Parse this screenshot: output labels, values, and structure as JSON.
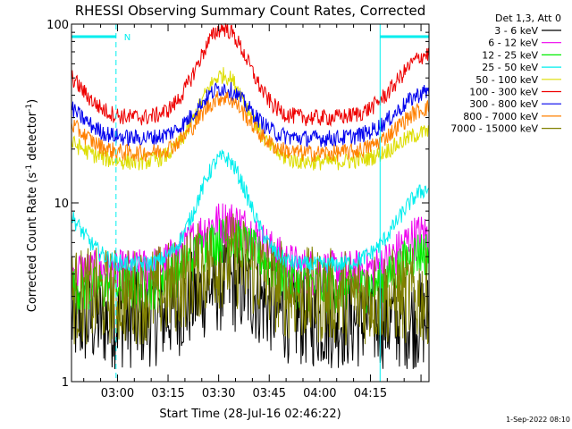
{
  "chart_data": {
    "type": "line",
    "title": "RHESSI Observing Summary Count Rates, Corrected",
    "xlabel": "Start Time (28-Jul-16 02:46:22)",
    "ylabel_main": "Corrected Count Rate (s",
    "ylabel_sup1": "-1",
    "ylabel_mid": " detector",
    "ylabel_sup2": "-1",
    "ylabel_end": ")",
    "y_scale": "log",
    "ylim": [
      1,
      100
    ],
    "y_ticks": [
      {
        "value": 1,
        "label": "1"
      },
      {
        "value": 10,
        "label": "10"
      },
      {
        "value": 100,
        "label": "100"
      }
    ],
    "xlim_minutes": [
      0,
      106
    ],
    "x_ticks": [
      {
        "minute": 13.63,
        "label": "03:00"
      },
      {
        "minute": 28.63,
        "label": "03:15"
      },
      {
        "minute": 43.63,
        "label": "03:30"
      },
      {
        "minute": 58.63,
        "label": "03:45"
      },
      {
        "minute": 73.63,
        "label": "04:00"
      },
      {
        "minute": 88.63,
        "label": "04:15"
      }
    ],
    "legend_header": "Det 1,3, Att 0",
    "legend_position": "top-right, outside plot",
    "series": [
      {
        "name": "3 - 6 keV",
        "color": "#000000",
        "kind": "low-noisy",
        "level": 2.2
      },
      {
        "name": "6 - 12 keV",
        "color": "#ee00ee",
        "kind": "low-band",
        "level": 4.2
      },
      {
        "name": "12 - 25 keV",
        "color": "#00ee00",
        "kind": "low-band",
        "level": 3.4
      },
      {
        "name": "25 - 50 keV",
        "color": "#00eeee",
        "kind": "smooth",
        "base": 4.5,
        "peak": 18,
        "edge": 12
      },
      {
        "name": "50 - 100 keV",
        "color": "#dddd00",
        "kind": "smooth",
        "base": 17,
        "peak": 52,
        "edge": 25
      },
      {
        "name": "100 - 300 keV",
        "color": "#ee0000",
        "kind": "smooth",
        "base": 30,
        "peak": 95,
        "edge": 68
      },
      {
        "name": "300 - 800 keV",
        "color": "#0000ee",
        "kind": "smooth",
        "base": 23,
        "peak": 44,
        "edge": 42
      },
      {
        "name": "800 - 7000 keV",
        "color": "#ff8000",
        "kind": "smooth",
        "base": 19,
        "peak": 39,
        "edge": 34
      },
      {
        "name": "7000 - 15000 keV",
        "color": "#808000",
        "kind": "low-noisy",
        "level": 3.0
      }
    ],
    "flag_label": "N",
    "flag_color": "#00eeee",
    "flag_intervals_minutes": [
      [
        0,
        13.2
      ],
      [
        91.5,
        106
      ]
    ]
  },
  "footer_timestamp": "1-Sep-2022 08:10"
}
